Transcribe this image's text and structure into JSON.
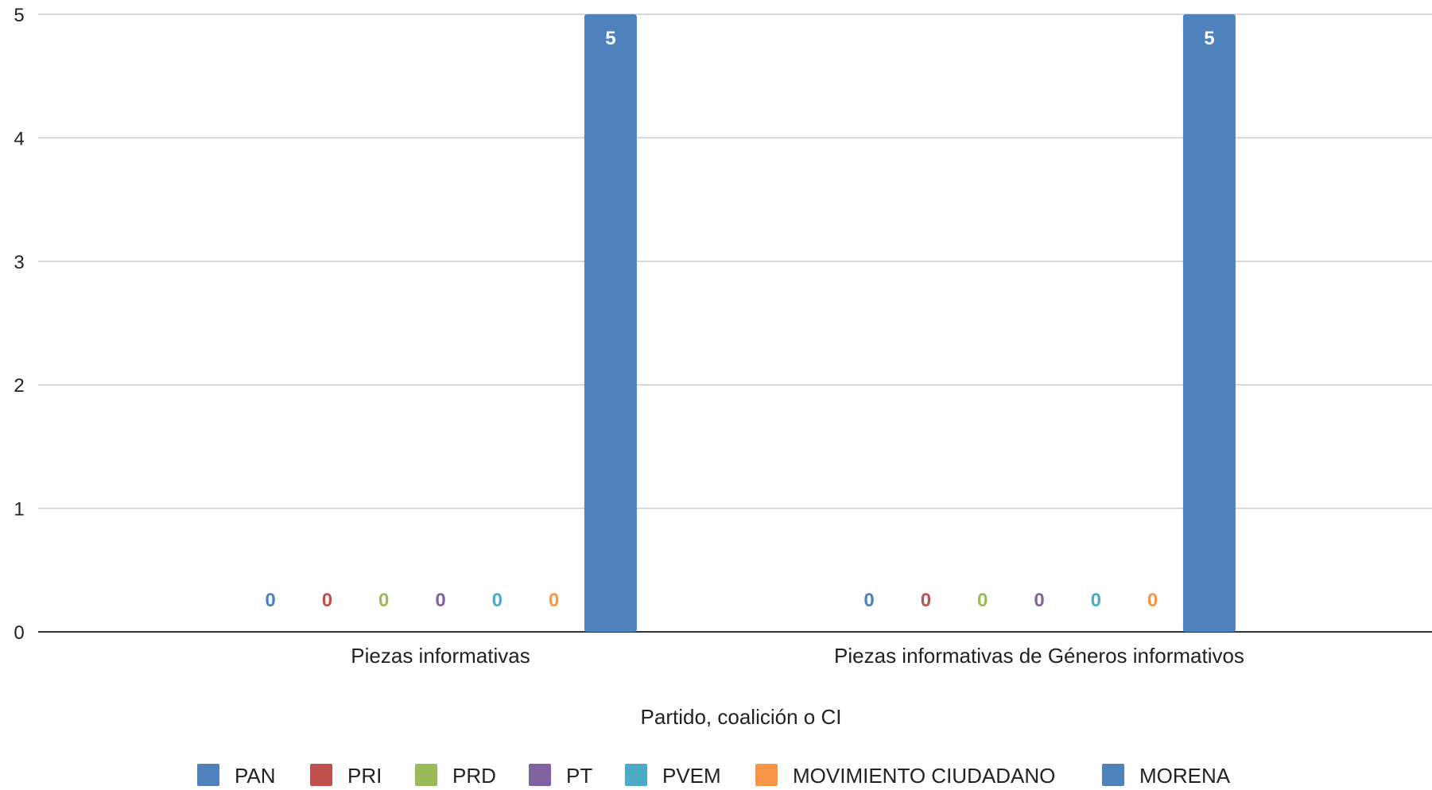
{
  "chart_data": {
    "type": "bar",
    "categories": [
      "Piezas informativas",
      "Piezas informativas de Géneros informativos"
    ],
    "series": [
      {
        "name": "PAN",
        "color": "#4f81bd",
        "values": [
          0,
          0
        ]
      },
      {
        "name": "PRI",
        "color": "#c0504d",
        "values": [
          0,
          0
        ]
      },
      {
        "name": "PRD",
        "color": "#9bbb59",
        "values": [
          0,
          0
        ]
      },
      {
        "name": "PT",
        "color": "#8064a2",
        "values": [
          0,
          0
        ]
      },
      {
        "name": "PVEM",
        "color": "#4bacc6",
        "values": [
          0,
          0
        ]
      },
      {
        "name": "MOVIMIENTO CIUDADANO",
        "color": "#f79646",
        "values": [
          0,
          0
        ]
      },
      {
        "name": "MORENA",
        "color": "#4f81bd",
        "values": [
          5,
          5
        ]
      }
    ],
    "xlabel": "Partido, coalición o CI",
    "ylabel": "",
    "ylim": [
      0,
      5
    ],
    "yticks": [
      0,
      1,
      2,
      3,
      4,
      5
    ],
    "grid": true,
    "legend": "bottom"
  }
}
